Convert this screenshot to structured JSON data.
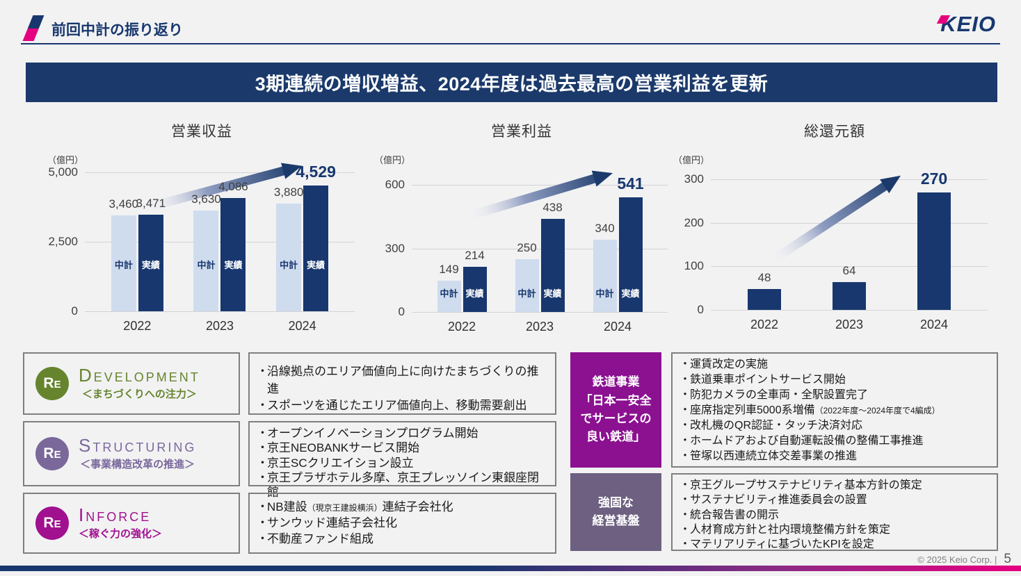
{
  "slide": {
    "header": {
      "title": "前回中計の振り返り",
      "logo_text": "KEIO"
    },
    "banner": {
      "text": "3期連続の増収増益、2024年度は過去最高の営業利益を更新"
    },
    "footer": {
      "copyright": "© 2025 Keio Corp.  |",
      "page_number": "5"
    }
  },
  "colors": {
    "navy": "#17376e",
    "banner_navy": "#1b3a6b",
    "light_bar": "#cfdcee",
    "pink": "#e4007f",
    "development_green": "#66842d",
    "structuring_purple": "#7a689b",
    "inforce_magenta": "#a0108f",
    "railway_purple": "#8b1191",
    "base_purple": "#6d6080"
  },
  "chart_data": [
    {
      "type": "bar",
      "title": "営業収益",
      "unit": "（億円）",
      "categories": [
        "2022",
        "2023",
        "2024"
      ],
      "series": [
        {
          "name": "中計",
          "color": "#cfdcee",
          "values": [
            3460,
            3630,
            3880
          ],
          "labels": [
            "3,460",
            "3,630",
            "3,880"
          ]
        },
        {
          "name": "実績",
          "color": "#17376e",
          "values": [
            3471,
            4086,
            4529
          ],
          "labels": [
            "3,471",
            "4,086",
            "4,529"
          ]
        }
      ],
      "ymax": 5000,
      "yticks": [
        {
          "v": 5000,
          "label": "5,000"
        },
        {
          "v": 2500,
          "label": "2,500"
        },
        {
          "v": 0,
          "label": "0"
        }
      ],
      "highlight_last": true
    },
    {
      "type": "bar",
      "title": "営業利益",
      "unit": "（億円）",
      "categories": [
        "2022",
        "2023",
        "2024"
      ],
      "series": [
        {
          "name": "中計",
          "color": "#cfdcee",
          "values": [
            149,
            250,
            340
          ],
          "labels": [
            "149",
            "250",
            "340"
          ]
        },
        {
          "name": "実績",
          "color": "#17376e",
          "values": [
            214,
            438,
            541
          ],
          "labels": [
            "214",
            "438",
            "541"
          ]
        }
      ],
      "ymax": 600,
      "yticks": [
        {
          "v": 600,
          "label": "600"
        },
        {
          "v": 300,
          "label": "300"
        },
        {
          "v": 0,
          "label": "0"
        }
      ],
      "highlight_last": true
    },
    {
      "type": "bar",
      "title": "総還元額",
      "unit": "（億円）",
      "categories": [
        "2022",
        "2023",
        "2024"
      ],
      "series": [
        {
          "name": "",
          "color": "#17376e",
          "values": [
            48,
            64,
            270
          ],
          "labels": [
            "48",
            "64",
            "270"
          ]
        }
      ],
      "ymax": 300,
      "yticks": [
        {
          "v": 300,
          "label": "300"
        },
        {
          "v": 200,
          "label": "200"
        },
        {
          "v": 100,
          "label": "100"
        },
        {
          "v": 0,
          "label": "0"
        }
      ],
      "highlight_last": true
    }
  ],
  "left_sections": [
    {
      "badge": "Re",
      "heading": "Development",
      "subtitle": "＜まちづくりへの注力＞",
      "color": "#66842d",
      "items": [
        "沿線拠点のエリア価値向上に向けたまちづくりの推進",
        "スポーツを通じたエリア価値向上、移動需要創出"
      ]
    },
    {
      "badge": "Re",
      "heading": "Structuring",
      "subtitle": "＜事業構造改革の推進＞",
      "color": "#7a689b",
      "items": [
        "オープンイノベーションプログラム開始",
        "京王NEOBANKサービス開始",
        "京王SCクリエイション設立",
        "京王プラザホテル多摩、京王プレッソイン東銀座閉館"
      ]
    },
    {
      "badge": "Re",
      "heading": "Inforce",
      "subtitle": "＜稼ぐ力の強化＞",
      "color": "#a0108f",
      "items": [
        {
          "pre": "NB建設",
          "small": "（現京王建設横浜）",
          "post": "連結子会社化"
        },
        "サンウッド連結子会社化",
        "不動産ファンド組成"
      ]
    }
  ],
  "right_sections": [
    {
      "label": "鉄道事業\n「日本一安全\nでサービスの\n良い鉄道」",
      "color": "#8b1191",
      "items": [
        "運賃改定の実施",
        "鉄道乗車ポイントサービス開始",
        "防犯カメラの全車両・全駅設置完了",
        {
          "pre": "座席指定列車5000系増備",
          "small": "（2022年度～2024年度で4編成）",
          "post": ""
        },
        "改札機のQR認証・タッチ決済対応",
        "ホームドアおよび自動運転設備の整備工事推進",
        "笹塚以西連続立体交差事業の推進"
      ]
    },
    {
      "label": "強固な\n経営基盤",
      "color": "#6d6080",
      "items": [
        "京王グループサステナビリティ基本方針の策定",
        "サステナビリティ推進委員会の設置",
        "統合報告書の開示",
        "人材育成方針と社内環境整備方針を策定",
        "マテリアリティに基づいたKPIを設定"
      ]
    }
  ]
}
